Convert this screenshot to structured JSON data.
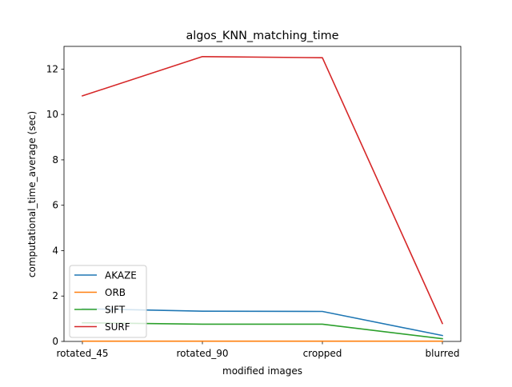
{
  "chart_data": {
    "type": "line",
    "title": "algos_KNN_matching_time",
    "xlabel": "modified images",
    "ylabel": "computational_time_average (sec)",
    "categories": [
      "rotated_45",
      "rotated_90",
      "cropped",
      "blurred"
    ],
    "ylim": [
      0,
      13
    ],
    "yticks": [
      0,
      2,
      4,
      6,
      8,
      10,
      12
    ],
    "grid": false,
    "legend_position": "lower-left",
    "series": [
      {
        "name": "AKAZE",
        "color": "#1f77b4",
        "values": [
          1.44,
          1.33,
          1.32,
          0.26
        ]
      },
      {
        "name": "ORB",
        "color": "#ff7f0e",
        "values": [
          0.01,
          0.01,
          0.01,
          0.01
        ]
      },
      {
        "name": "SIFT",
        "color": "#2ca02c",
        "values": [
          0.82,
          0.76,
          0.76,
          0.12
        ]
      },
      {
        "name": "SURF",
        "color": "#d62728",
        "values": [
          10.82,
          12.55,
          12.5,
          0.79
        ]
      }
    ]
  }
}
